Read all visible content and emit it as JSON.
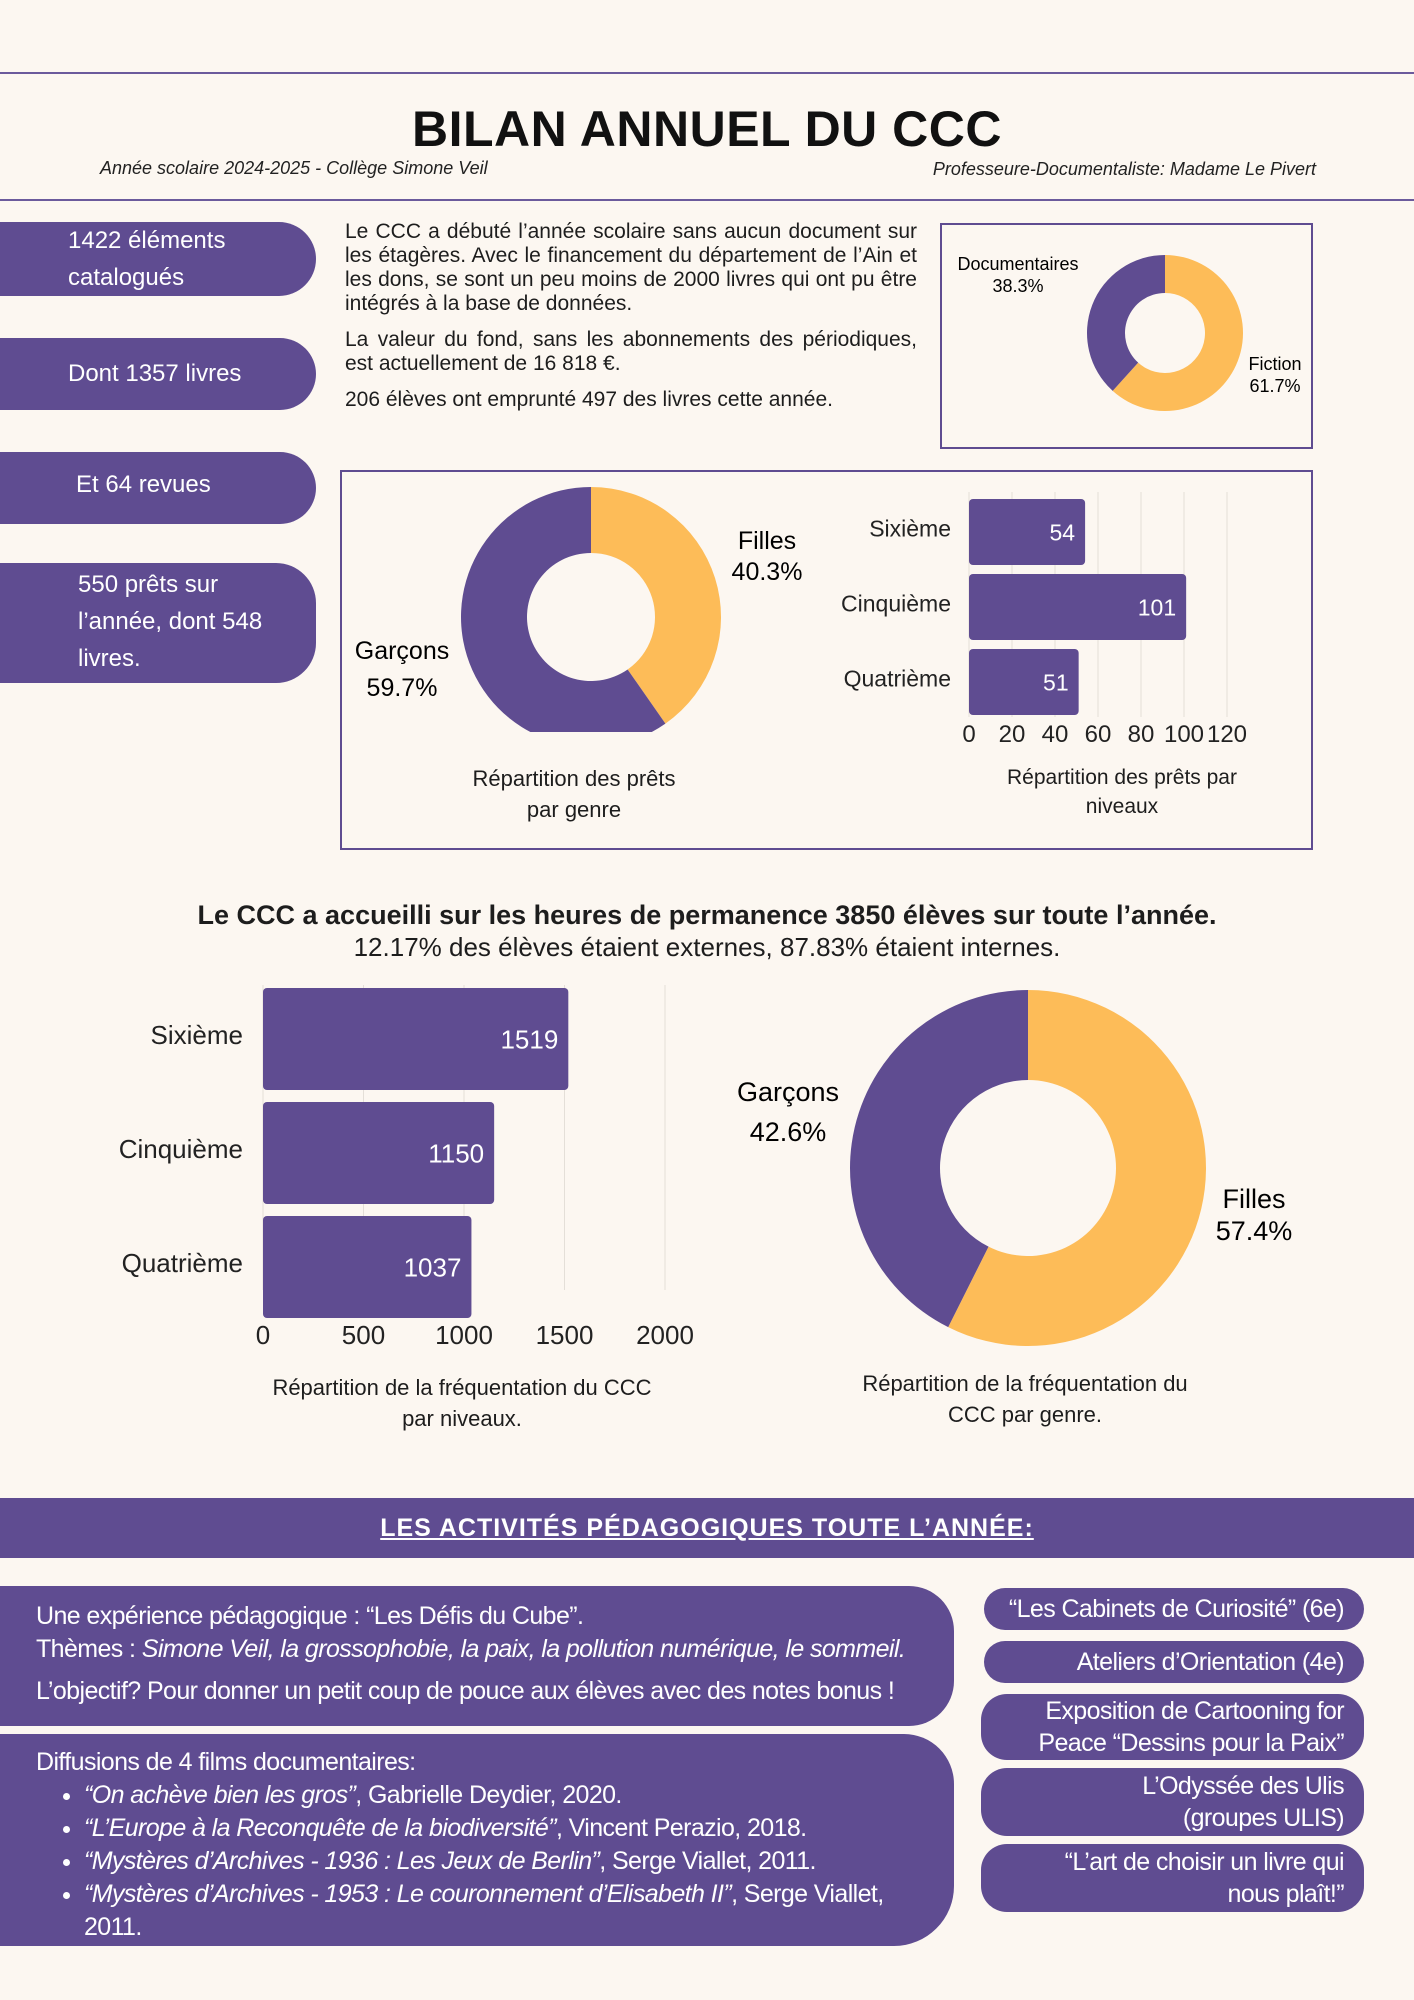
{
  "header": {
    "title": "BILAN ANNUEL DU CCC",
    "school_year": "Année scolaire 2024-2025 - Collège Simone Veil",
    "librarian": "Professeure-Documentaliste: Madame Le Pivert"
  },
  "stats": [
    "1422 éléments catalogués",
    "Dont 1357 livres",
    "Et 64 revues",
    "550 prêts sur l’année, dont 548 livres."
  ],
  "intro": {
    "p1": "Le CCC a débuté l’année scolaire sans aucun document sur les étagères. Avec le financement du département de l’Ain et les dons, se sont un peu moins de 2000 livres qui ont pu être intégrés à la base de données.",
    "p2": "La valeur du fond, sans les abonnements des périodiques, est actuellement de 16 818 €.",
    "p3": "206 élèves ont emprunté 497 des livres cette année."
  },
  "section2": {
    "headline": "Le CCC a accueilli sur les heures de permanence 3850 élèves sur toute l’année.",
    "subline": "12.17% des élèves étaient externes, 87.83% étaient internes."
  },
  "activities": {
    "banner": "LES ACTIVITÉS PÉDAGOGIQUES TOUTE L’ANNÉE:",
    "box1": {
      "line1": "Une expérience pédagogique : “Les Défis du Cube”.",
      "themes_label": "Thèmes : ",
      "themes": "Simone Veil, la grossophobie, la paix, la pollution numérique, le sommeil.",
      "line3": "L’objectif? Pour donner un petit coup de pouce aux élèves avec des notes bonus !"
    },
    "box2": {
      "intro": "Diffusions de 4 films documentaires:",
      "films": [
        {
          "title": "“On achève bien les gros”",
          "rest": ", Gabrielle Deydier, 2020."
        },
        {
          "title": "“L’Europe à la Reconquête de la biodiversité”",
          "rest": ", Vincent Perazio, 2018."
        },
        {
          "title": "“Mystères d’Archives - 1936 : Les Jeux de Berlin”",
          "rest": ", Serge Viallet, 2011."
        },
        {
          "title": "“Mystères d’Archives - 1953 : Le couronnement d’Elisabeth II”",
          "rest": ", Serge Viallet, 2011."
        }
      ]
    },
    "side": [
      "“Les Cabinets de Curiosité” (6e)",
      "Ateliers d’Orientation (4e)",
      "Exposition de Cartooning for Peace “Dessins pour la Paix”",
      "L’Odyssée des Ulis (groupes ULIS)",
      "“L’art de choisir un livre qui nous plaît!”"
    ]
  },
  "colors": {
    "purple": "#5f4c91",
    "yellow": "#fdbc58",
    "background": "#fcf7f1"
  },
  "chart_data": [
    {
      "type": "pie",
      "labels": [
        "Documentaires",
        "Fiction"
      ],
      "values": [
        38.3,
        61.7
      ],
      "value_labels": [
        "38.3%",
        "61.7%"
      ],
      "colors": [
        "#5f4c91",
        "#fdbc58"
      ]
    },
    {
      "type": "pie",
      "labels": [
        "Filles",
        "Garçons"
      ],
      "values": [
        40.3,
        59.7
      ],
      "value_labels": [
        "40.3%",
        "59.7%"
      ],
      "colors": [
        "#fdbc58",
        "#5f4c91"
      ],
      "title": "Répartition des prêts par genre"
    },
    {
      "type": "bar",
      "orientation": "horizontal",
      "categories": [
        "Sixième",
        "Cinquième",
        "Quatrième"
      ],
      "values": [
        54,
        101,
        51
      ],
      "xlim": [
        0,
        120
      ],
      "xticks": [
        "0",
        "20",
        "40",
        "60",
        "80",
        "100",
        "120"
      ],
      "grid": true,
      "title": "Répartition des prêts par niveaux"
    },
    {
      "type": "bar",
      "orientation": "horizontal",
      "categories": [
        "Sixième",
        "Cinquième",
        "Quatrième"
      ],
      "values": [
        1519,
        1150,
        1037
      ],
      "xlim": [
        0,
        2000
      ],
      "xticks": [
        "0",
        "500",
        "1000",
        "1500",
        "2000"
      ],
      "grid": true,
      "title": "Répartition de la fréquentation du CCC par niveaux."
    },
    {
      "type": "pie",
      "labels": [
        "Filles",
        "Garçons"
      ],
      "values": [
        57.4,
        42.6
      ],
      "value_labels": [
        "57.4%",
        "42.6%"
      ],
      "colors": [
        "#fdbc58",
        "#5f4c91"
      ],
      "title": "Répartition de la fréquentation du CCC par genre."
    }
  ]
}
